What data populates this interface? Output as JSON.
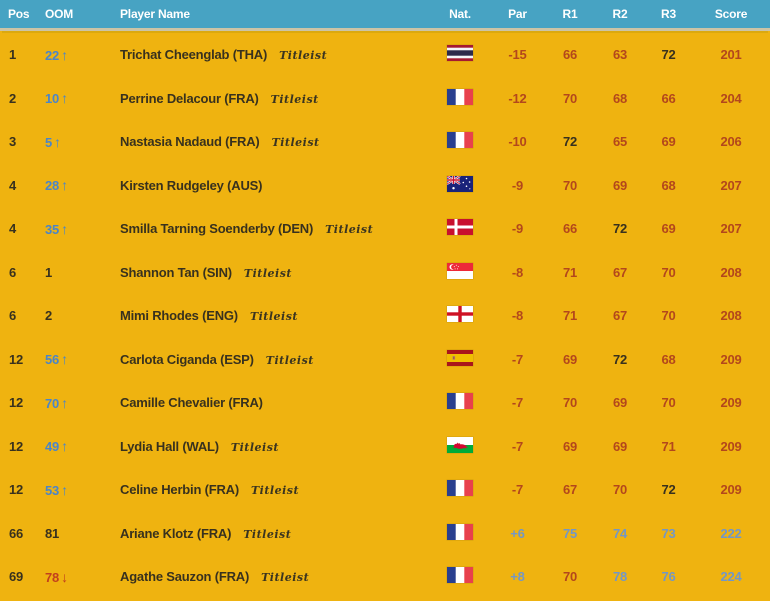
{
  "colors": {
    "header_bg": "#47A3C3",
    "body_bg": "#EFB310",
    "under_par": "#B3471C",
    "even_par": "#38311E",
    "over_par": "#7397C6",
    "oom_up": "#4A85C9",
    "oom_down": "#C2401D",
    "header_text": "#FFFFFF"
  },
  "icons": {
    "oom_up_arrow": "↑",
    "oom_down_arrow": "↓"
  },
  "table": {
    "columns": [
      "Pos",
      "OOM",
      "Player Name",
      "Nat.",
      "Par",
      "R1",
      "R2",
      "R3",
      "Score"
    ],
    "rows": [
      {
        "pos": "1",
        "oom": "22",
        "oom_dir": "up",
        "player": "Trichat Cheenglab (THA)",
        "brand": "Titleist",
        "nat": "THA",
        "par": "-15",
        "par_tone": "under",
        "rounds": [
          "66",
          "63",
          "72"
        ],
        "round_tones": [
          "under",
          "under",
          "even"
        ],
        "score": "201",
        "score_tone": "under"
      },
      {
        "pos": "2",
        "oom": "10",
        "oom_dir": "up",
        "player": "Perrine Delacour (FRA)",
        "brand": "Titleist",
        "nat": "FRA",
        "par": "-12",
        "par_tone": "under",
        "rounds": [
          "70",
          "68",
          "66"
        ],
        "round_tones": [
          "under",
          "under",
          "under"
        ],
        "score": "204",
        "score_tone": "under"
      },
      {
        "pos": "3",
        "oom": "5",
        "oom_dir": "up",
        "player": "Nastasia Nadaud (FRA)",
        "brand": "Titleist",
        "nat": "FRA",
        "par": "-10",
        "par_tone": "under",
        "rounds": [
          "72",
          "65",
          "69"
        ],
        "round_tones": [
          "even",
          "under",
          "under"
        ],
        "score": "206",
        "score_tone": "under"
      },
      {
        "pos": "4",
        "oom": "28",
        "oom_dir": "up",
        "player": "Kirsten Rudgeley (AUS)",
        "brand": null,
        "nat": "AUS",
        "par": "-9",
        "par_tone": "under",
        "rounds": [
          "70",
          "69",
          "68"
        ],
        "round_tones": [
          "under",
          "under",
          "under"
        ],
        "score": "207",
        "score_tone": "under"
      },
      {
        "pos": "4",
        "oom": "35",
        "oom_dir": "up",
        "player": "Smilla Tarning Soenderby (DEN)",
        "brand": "Titleist",
        "nat": "DEN",
        "par": "-9",
        "par_tone": "under",
        "rounds": [
          "66",
          "72",
          "69"
        ],
        "round_tones": [
          "under",
          "even",
          "under"
        ],
        "score": "207",
        "score_tone": "under"
      },
      {
        "pos": "6",
        "oom": "1",
        "oom_dir": "none",
        "player": "Shannon Tan (SIN)",
        "brand": "Titleist",
        "nat": "SIN",
        "par": "-8",
        "par_tone": "under",
        "rounds": [
          "71",
          "67",
          "70"
        ],
        "round_tones": [
          "under",
          "under",
          "under"
        ],
        "score": "208",
        "score_tone": "under"
      },
      {
        "pos": "6",
        "oom": "2",
        "oom_dir": "none",
        "player": "Mimi Rhodes (ENG)",
        "brand": "Titleist",
        "nat": "ENG",
        "par": "-8",
        "par_tone": "under",
        "rounds": [
          "71",
          "67",
          "70"
        ],
        "round_tones": [
          "under",
          "under",
          "under"
        ],
        "score": "208",
        "score_tone": "under"
      },
      {
        "pos": "12",
        "oom": "56",
        "oom_dir": "up",
        "player": "Carlota Ciganda (ESP)",
        "brand": "Titleist",
        "nat": "ESP",
        "par": "-7",
        "par_tone": "under",
        "rounds": [
          "69",
          "72",
          "68"
        ],
        "round_tones": [
          "under",
          "even",
          "under"
        ],
        "score": "209",
        "score_tone": "under"
      },
      {
        "pos": "12",
        "oom": "70",
        "oom_dir": "up",
        "player": "Camille Chevalier (FRA)",
        "brand": null,
        "nat": "FRA",
        "par": "-7",
        "par_tone": "under",
        "rounds": [
          "70",
          "69",
          "70"
        ],
        "round_tones": [
          "under",
          "under",
          "under"
        ],
        "score": "209",
        "score_tone": "under"
      },
      {
        "pos": "12",
        "oom": "49",
        "oom_dir": "up",
        "player": "Lydia Hall (WAL)",
        "brand": "Titleist",
        "nat": "WAL",
        "par": "-7",
        "par_tone": "under",
        "rounds": [
          "69",
          "69",
          "71"
        ],
        "round_tones": [
          "under",
          "under",
          "under"
        ],
        "score": "209",
        "score_tone": "under"
      },
      {
        "pos": "12",
        "oom": "53",
        "oom_dir": "up",
        "player": "Celine Herbin (FRA)",
        "brand": "Titleist",
        "nat": "FRA",
        "par": "-7",
        "par_tone": "under",
        "rounds": [
          "67",
          "70",
          "72"
        ],
        "round_tones": [
          "under",
          "under",
          "even"
        ],
        "score": "209",
        "score_tone": "under"
      },
      {
        "pos": "66",
        "oom": "81",
        "oom_dir": "none",
        "player": "Ariane Klotz (FRA)",
        "brand": "Titleist",
        "nat": "FRA",
        "par": "+6",
        "par_tone": "over",
        "rounds": [
          "75",
          "74",
          "73"
        ],
        "round_tones": [
          "over",
          "over",
          "over"
        ],
        "score": "222",
        "score_tone": "over"
      },
      {
        "pos": "69",
        "oom": "78",
        "oom_dir": "down",
        "player": "Agathe Sauzon (FRA)",
        "brand": "Titleist",
        "nat": "FRA",
        "par": "+8",
        "par_tone": "over",
        "rounds": [
          "70",
          "78",
          "76"
        ],
        "round_tones": [
          "under",
          "over",
          "over"
        ],
        "score": "224",
        "score_tone": "over"
      }
    ]
  }
}
